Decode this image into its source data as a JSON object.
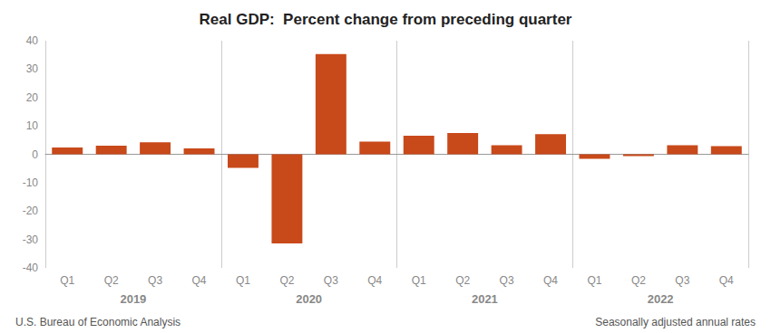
{
  "chart_data": {
    "type": "bar",
    "title": "Real GDP:  Percent change from preceding quarter",
    "categories": [
      "Q1",
      "Q2",
      "Q3",
      "Q4",
      "Q1",
      "Q2",
      "Q3",
      "Q4",
      "Q1",
      "Q2",
      "Q3",
      "Q4",
      "Q1",
      "Q2",
      "Q3",
      "Q4"
    ],
    "values": [
      2.4,
      3.0,
      4.2,
      2.1,
      -4.8,
      -31.4,
      35.3,
      4.5,
      6.5,
      7.5,
      3.2,
      7.1,
      -1.6,
      -0.6,
      3.2,
      2.9
    ],
    "groups": [
      "2019",
      "2020",
      "2021",
      "2022"
    ],
    "annotations": [
      "U.S. Bureau of Economic Analysis",
      "Seasonally adjusted annual rates"
    ],
    "color": "#C8491A",
    "ylim": [
      -40,
      40
    ],
    "yticks": [
      -40,
      -30,
      -20,
      -10,
      0,
      10,
      20,
      30,
      40
    ],
    "grid": false
  }
}
